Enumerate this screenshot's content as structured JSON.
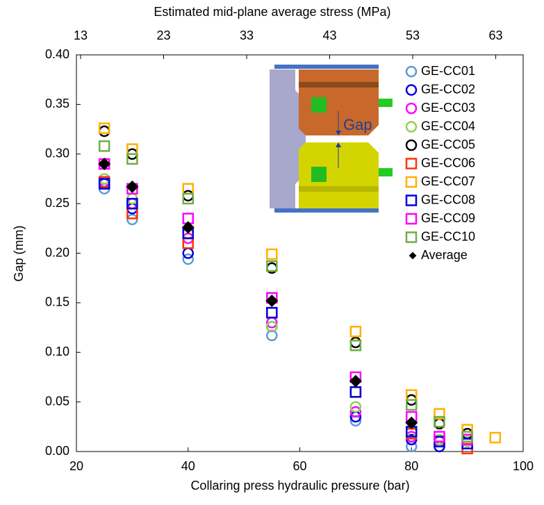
{
  "chart_data": {
    "type": "scatter",
    "xlabel": "Collaring press hydraulic pressure (bar)",
    "ylabel": "Gap (mm)",
    "x2label": "Estimated mid-plane average stress (MPa)",
    "inset_label": "Gap",
    "x": [
      25,
      30,
      40,
      55,
      70,
      80,
      85,
      90,
      95
    ],
    "xlim": [
      20,
      100
    ],
    "xticks": [
      20,
      40,
      60,
      80,
      100
    ],
    "x2lim": [
      12.5,
      66.3
    ],
    "x2ticks": [
      13,
      23,
      33,
      43,
      53,
      63
    ],
    "ylim": [
      0,
      0.4
    ],
    "yticks": [
      {
        "value": 0,
        "label": "0.00"
      },
      {
        "value": 0.05,
        "label": "0.05"
      },
      {
        "value": 0.1,
        "label": "0.10"
      },
      {
        "value": 0.15,
        "label": "0.15"
      },
      {
        "value": 0.2,
        "label": "0.20"
      },
      {
        "value": 0.25,
        "label": "0.25"
      },
      {
        "value": 0.3,
        "label": "0.30"
      },
      {
        "value": 0.35,
        "label": "0.35"
      },
      {
        "value": 0.4,
        "label": "0.40"
      }
    ],
    "series": [
      {
        "name": "GE-CC01",
        "color": "#5b9bd5",
        "marker": "circle",
        "values": [
          0.265,
          0.234,
          0.194,
          0.117,
          0.031,
          0.005,
          null,
          null,
          null
        ]
      },
      {
        "name": "GE-CC02",
        "color": "#0000e0",
        "marker": "circle",
        "values": [
          0.27,
          0.245,
          0.2,
          0.126,
          0.035,
          0.012,
          0.005,
          null,
          null
        ]
      },
      {
        "name": "GE-CC03",
        "color": "#ff00ff",
        "marker": "circle",
        "values": [
          0.272,
          0.25,
          0.215,
          0.13,
          0.04,
          0.015,
          0.01,
          null,
          null
        ]
      },
      {
        "name": "GE-CC04",
        "color": "#92d050",
        "marker": "circle",
        "values": [
          0.275,
          0.255,
          0.22,
          0.126,
          0.045,
          0.02,
          0.012,
          0.01,
          null
        ]
      },
      {
        "name": "GE-CC05",
        "color": "#000000",
        "marker": "circle",
        "values": [
          0.323,
          0.3,
          0.258,
          0.185,
          0.11,
          0.052,
          0.028,
          0.018,
          null
        ]
      },
      {
        "name": "GE-CC06",
        "color": "#ff3300",
        "marker": "square",
        "values": [
          0.272,
          0.24,
          0.21,
          0.14,
          0.06,
          0.018,
          0.01,
          0.003,
          null
        ]
      },
      {
        "name": "GE-CC07",
        "color": "#ffb000",
        "marker": "square",
        "values": [
          0.326,
          0.305,
          0.265,
          0.199,
          0.121,
          0.057,
          0.038,
          0.022,
          0.014
        ]
      },
      {
        "name": "GE-CC08",
        "color": "#0000e0",
        "marker": "square",
        "values": [
          0.27,
          0.25,
          0.22,
          0.14,
          0.06,
          0.02,
          0.01,
          0.008,
          null
        ]
      },
      {
        "name": "GE-CC09",
        "color": "#ff00ff",
        "marker": "square",
        "values": [
          0.29,
          0.265,
          0.235,
          0.155,
          0.075,
          0.035,
          0.015,
          0.012,
          null
        ]
      },
      {
        "name": "GE-CC10",
        "color": "#70ad47",
        "marker": "square",
        "values": [
          0.308,
          0.295,
          0.255,
          0.187,
          0.107,
          0.047,
          0.03,
          0.015,
          null
        ]
      },
      {
        "name": "Average",
        "color": "#000000",
        "marker": "diamond",
        "values": [
          0.29,
          0.267,
          0.226,
          0.152,
          0.071,
          0.029,
          null,
          null,
          null
        ]
      }
    ]
  }
}
